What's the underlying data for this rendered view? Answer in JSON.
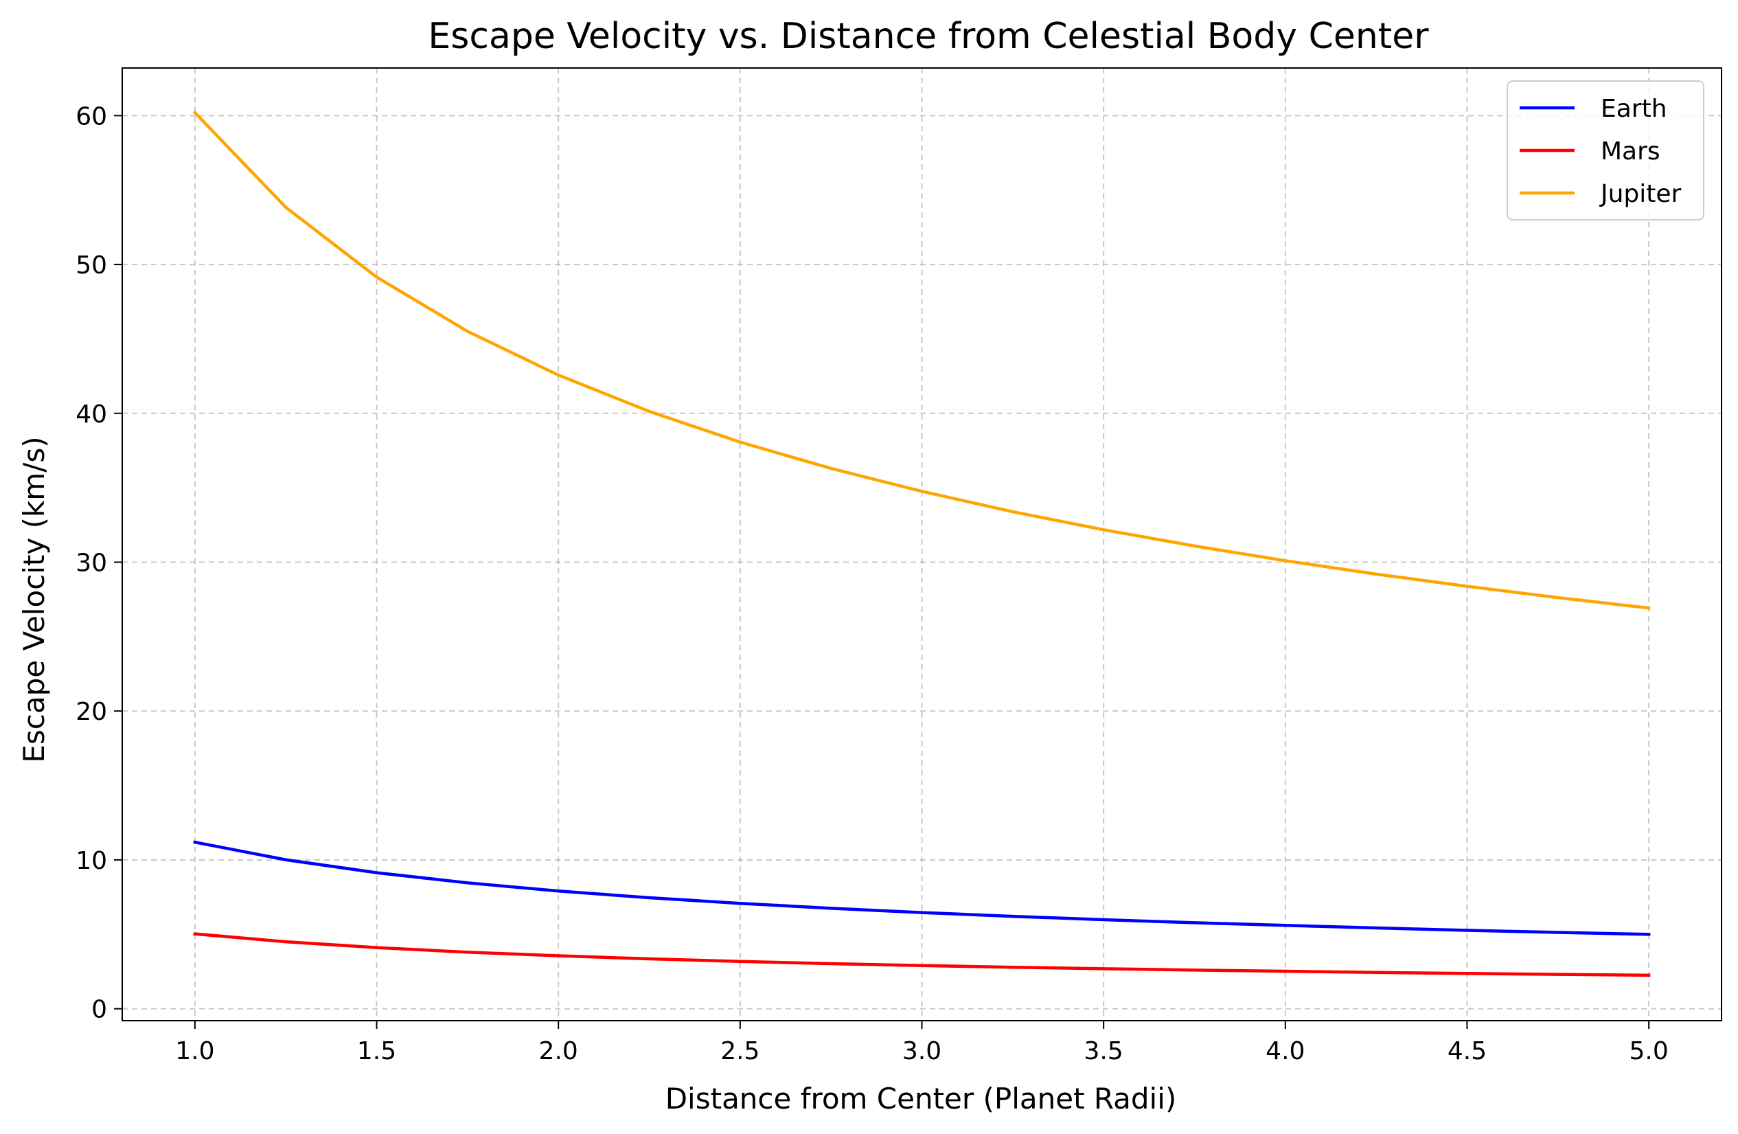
{
  "chart_data": {
    "type": "line",
    "title": "Escape Velocity vs. Distance from Celestial Body Center",
    "xlabel": "Distance from Center (Planet Radii)",
    "ylabel": "Escape Velocity (km/s)",
    "xlim": [
      0.8,
      5.2
    ],
    "ylim": [
      -0.8,
      63.2
    ],
    "xticks": [
      1.0,
      1.5,
      2.0,
      2.5,
      3.0,
      3.5,
      4.0,
      4.5,
      5.0
    ],
    "xtick_labels": [
      "1.0",
      "1.5",
      "2.0",
      "2.5",
      "3.0",
      "3.5",
      "4.0",
      "4.5",
      "5.0"
    ],
    "yticks": [
      0,
      10,
      20,
      30,
      40,
      50,
      60
    ],
    "ytick_labels": [
      "0",
      "10",
      "20",
      "30",
      "40",
      "50",
      "60"
    ],
    "grid": true,
    "grid_style": "dashed",
    "legend_position": "top-right",
    "x": [
      1.0,
      1.25,
      1.5,
      1.75,
      2.0,
      2.25,
      2.5,
      2.75,
      3.0,
      3.25,
      3.5,
      3.75,
      4.0,
      4.25,
      4.5,
      4.75,
      5.0
    ],
    "series": [
      {
        "name": "Earth",
        "color": "#0000ff",
        "values": [
          11.19,
          10.01,
          9.14,
          8.46,
          7.91,
          7.46,
          7.08,
          6.75,
          6.46,
          6.21,
          5.98,
          5.78,
          5.6,
          5.43,
          5.27,
          5.13,
          5.0
        ]
      },
      {
        "name": "Mars",
        "color": "#ff0000",
        "values": [
          5.03,
          4.5,
          4.11,
          3.8,
          3.56,
          3.35,
          3.18,
          3.03,
          2.9,
          2.79,
          2.69,
          2.6,
          2.52,
          2.44,
          2.37,
          2.31,
          2.25
        ]
      },
      {
        "name": "Jupiter",
        "color": "#ffa500",
        "values": [
          60.2,
          53.84,
          49.15,
          45.51,
          42.57,
          40.13,
          38.07,
          36.3,
          34.76,
          33.39,
          32.18,
          31.09,
          30.1,
          29.2,
          28.38,
          27.62,
          26.92
        ]
      }
    ]
  }
}
